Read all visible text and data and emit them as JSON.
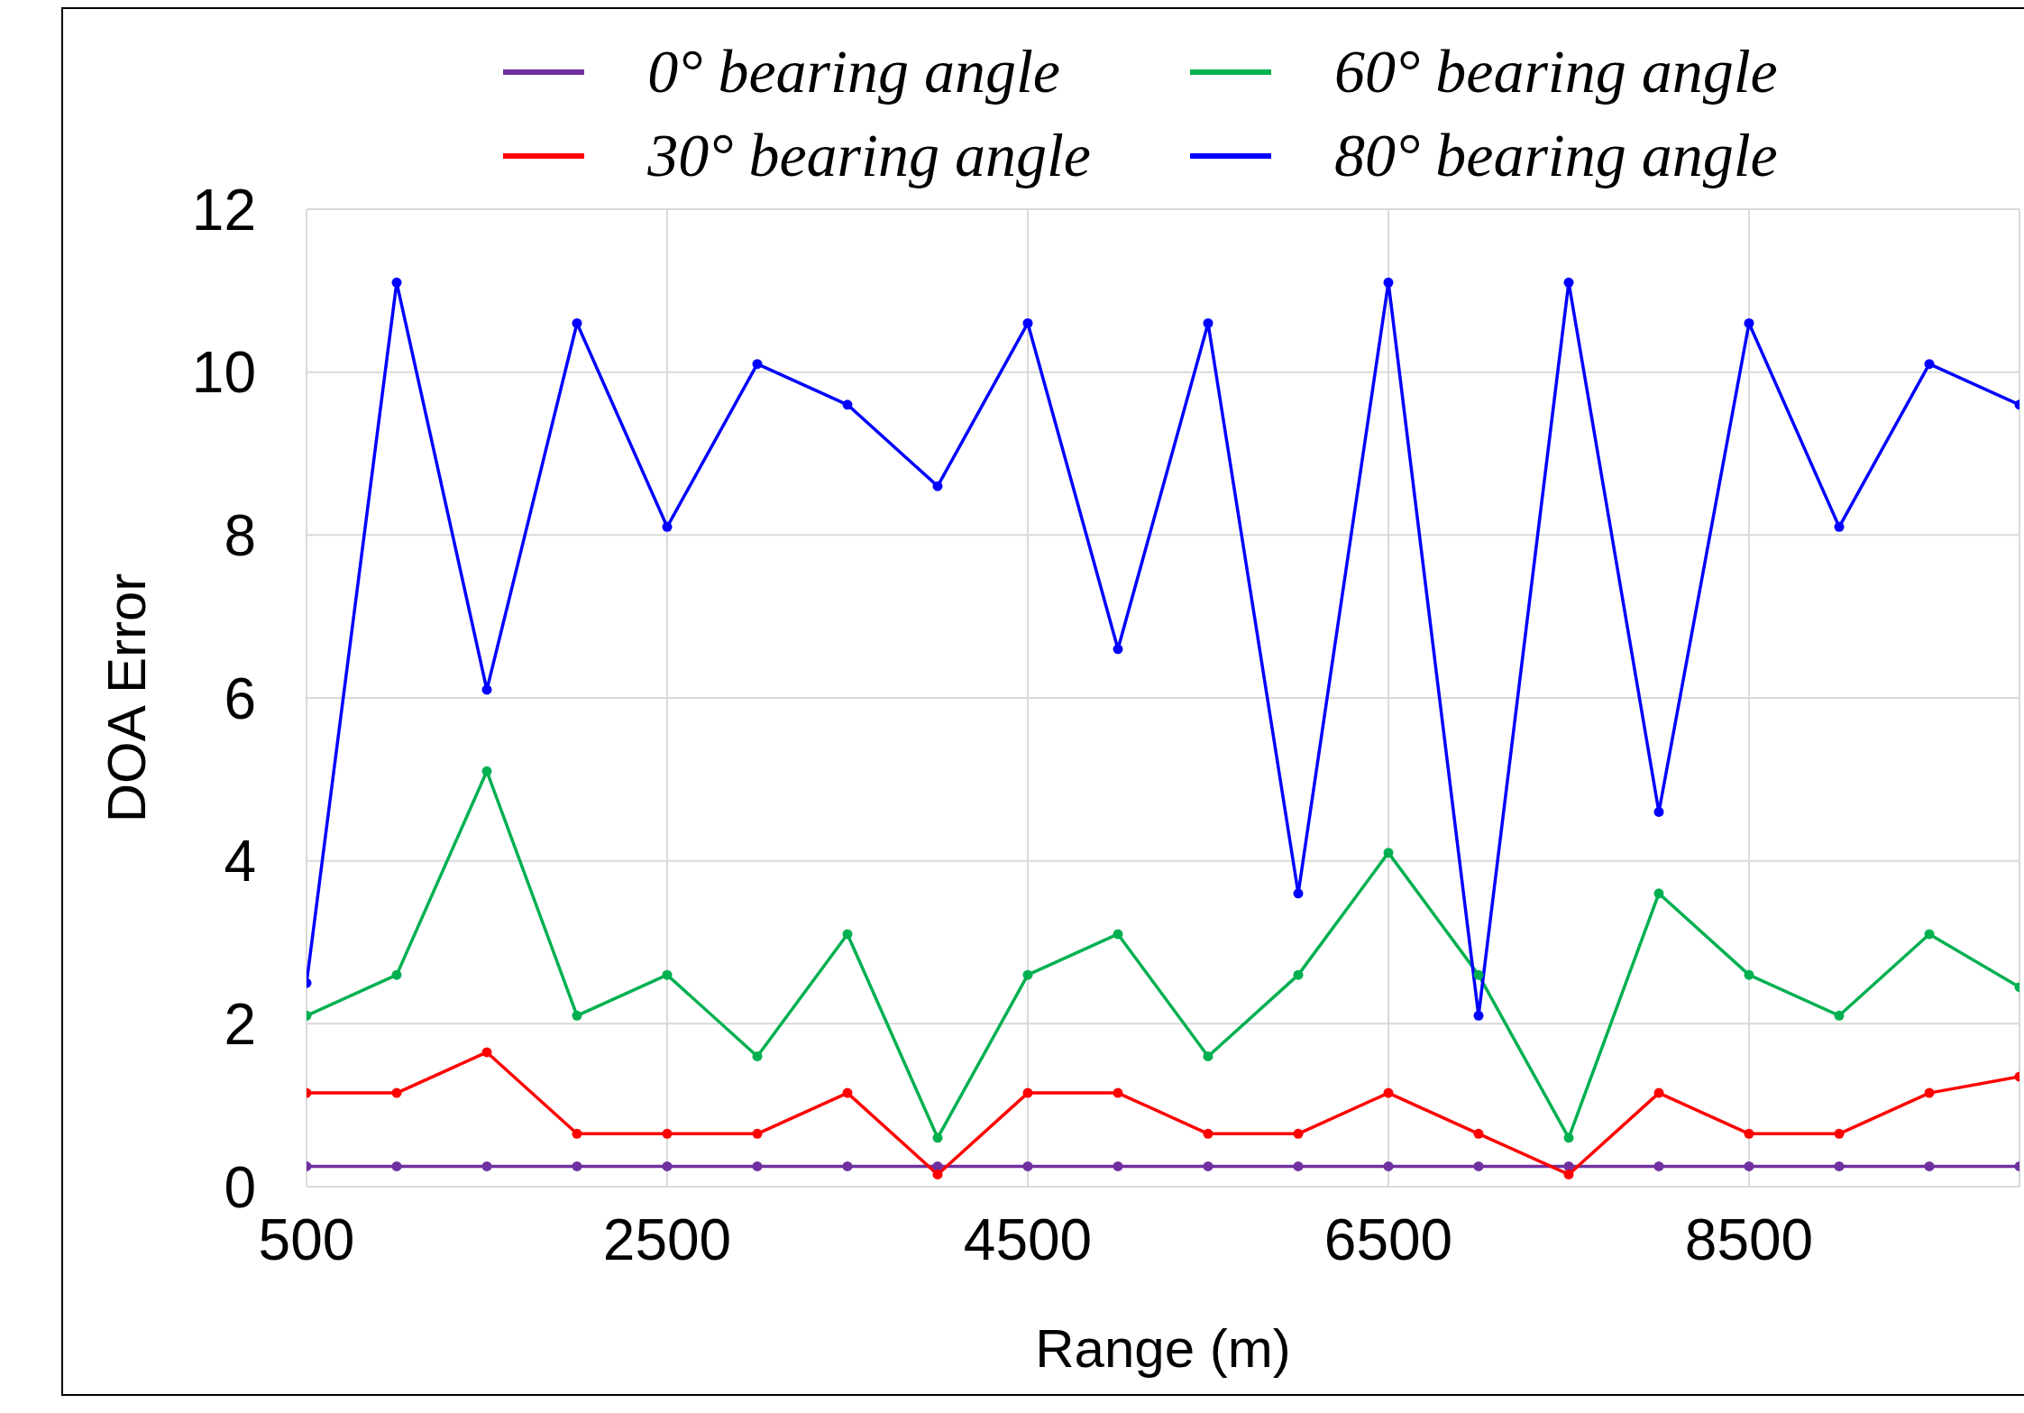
{
  "chart_data": {
    "type": "line",
    "xlabel": "Range (m)",
    "ylabel": "DOA Error",
    "x": [
      500,
      1000,
      1500,
      2000,
      2500,
      3000,
      3500,
      4000,
      4500,
      5000,
      5500,
      6000,
      6500,
      7000,
      7500,
      8000,
      8500,
      9000,
      9500,
      10000
    ],
    "series": [
      {
        "name": "0° bearing angle",
        "color": "#7030a0",
        "values": [
          0.25,
          0.25,
          0.25,
          0.25,
          0.25,
          0.25,
          0.25,
          0.25,
          0.25,
          0.25,
          0.25,
          0.25,
          0.25,
          0.25,
          0.25,
          0.25,
          0.25,
          0.25,
          0.25,
          0.25
        ]
      },
      {
        "name": "30° bearing angle",
        "color": "#ff0000",
        "values": [
          1.15,
          1.15,
          1.65,
          0.65,
          0.65,
          0.65,
          1.15,
          0.15,
          1.15,
          1.15,
          0.65,
          0.65,
          1.15,
          0.65,
          0.15,
          1.15,
          0.65,
          0.65,
          1.15,
          1.35
        ]
      },
      {
        "name": "60° bearing angle",
        "color": "#00b050",
        "values": [
          2.1,
          2.6,
          5.1,
          2.1,
          2.6,
          1.6,
          3.1,
          0.6,
          2.6,
          3.1,
          1.6,
          2.6,
          4.1,
          2.6,
          0.6,
          3.6,
          2.6,
          2.1,
          3.1,
          2.45
        ]
      },
      {
        "name": "80° bearing angle",
        "color": "#0000ff",
        "values": [
          2.5,
          11.1,
          6.1,
          10.6,
          8.1,
          10.1,
          9.6,
          8.6,
          10.6,
          6.6,
          10.6,
          3.6,
          11.1,
          2.1,
          11.1,
          4.6,
          10.6,
          8.1,
          10.1,
          9.6
        ]
      }
    ],
    "xlim": [
      500,
      10000
    ],
    "xticks": [
      500,
      2500,
      4500,
      6500,
      8500
    ],
    "ylim": [
      0,
      12
    ],
    "yticks": [
      0,
      2,
      4,
      6,
      8,
      10,
      12
    ],
    "grid": true,
    "legend": "top",
    "marker": "circle",
    "line_style": "solid"
  }
}
